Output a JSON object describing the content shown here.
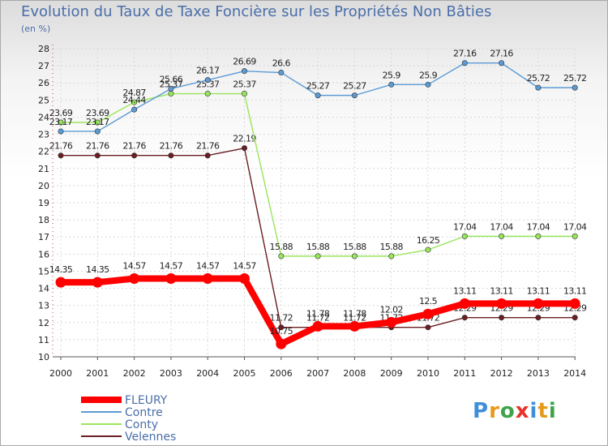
{
  "title": "Evolution du Taux de Taxe Foncière sur les Propriétés Non Bâties",
  "subtitle": "(en %)",
  "brand": "Proxiti",
  "chart_data": {
    "type": "line",
    "title": "Evolution du Taux de Taxe Foncière sur les Propriétés Non Bâties",
    "ylabel": "(en %)",
    "xlabel": "",
    "ylim": [
      10,
      28
    ],
    "yticks": [
      "10",
      "11",
      "12",
      "13",
      "14",
      "15",
      "16",
      "17",
      "18",
      "19",
      "20",
      "21",
      "22",
      "23",
      "24",
      "25",
      "26",
      "27",
      "28"
    ],
    "x": [
      "2000",
      "2001",
      "2002",
      "2003",
      "2004",
      "2005",
      "2006",
      "2007",
      "2008",
      "2009",
      "2010",
      "2011",
      "2012",
      "2013",
      "2014"
    ],
    "grid": true,
    "legend_position": "bottom-left",
    "series": [
      {
        "name": "Velennes",
        "color": "#6b1d22",
        "values": [
          21.76,
          21.76,
          21.76,
          21.76,
          21.76,
          22.19,
          11.72,
          11.72,
          11.72,
          11.72,
          11.72,
          12.29,
          12.29,
          12.29,
          12.29
        ],
        "labels": [
          "21.76",
          "21.76",
          "21.76",
          "21.76",
          "21.76",
          "22.19",
          "11.72",
          "11.72",
          "11.72",
          "11.72",
          "11.72",
          "12.29",
          "12.29",
          "12.29",
          "12.29"
        ]
      },
      {
        "name": "Conty",
        "color": "#99e55c",
        "values": [
          23.69,
          23.69,
          24.87,
          25.37,
          25.37,
          25.37,
          15.88,
          15.88,
          15.88,
          15.88,
          16.25,
          17.04,
          17.04,
          17.04,
          17.04
        ],
        "labels": [
          "23.69",
          "23.69",
          "24.87",
          "25.37",
          "25.37",
          "25.37",
          "15.88",
          "15.88",
          "15.88",
          "15.88",
          "16.25",
          "17.04",
          "17.04",
          "17.04",
          "17.04"
        ]
      },
      {
        "name": "Contre",
        "color": "#5b9bd5",
        "values": [
          23.17,
          23.17,
          24.44,
          25.66,
          26.17,
          26.69,
          26.6,
          25.27,
          25.27,
          25.9,
          25.9,
          27.16,
          27.16,
          25.72,
          25.72
        ],
        "labels": [
          "23.17",
          "23.17",
          "24.44",
          "25.66",
          "26.17",
          "26.69",
          "26.6",
          "25.27",
          "25.27",
          "25.9",
          "25.9",
          "27.16",
          "27.16",
          "25.72",
          "25.72"
        ]
      },
      {
        "name": "FLEURY",
        "color": "#ff0000",
        "values": [
          14.35,
          14.35,
          14.57,
          14.57,
          14.57,
          14.57,
          10.75,
          11.78,
          11.78,
          12.02,
          12.5,
          13.11,
          13.11,
          13.11,
          13.11
        ],
        "labels": [
          "14.35",
          "14.35",
          "14.57",
          "14.57",
          "14.57",
          "14.57",
          "10.75",
          "11.78",
          "11.78",
          "12.02",
          "12.5",
          "13.11",
          "13.11",
          "13.11",
          "13.11"
        ]
      }
    ],
    "legend": [
      "FLEURY",
      "Contre",
      "Conty",
      "Velennes"
    ]
  }
}
